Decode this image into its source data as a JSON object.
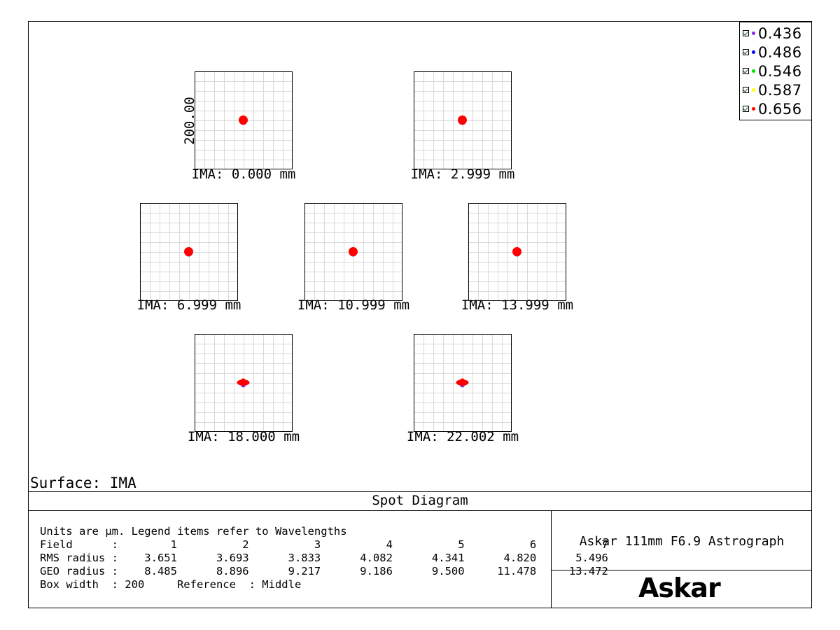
{
  "legend": {
    "items": [
      {
        "label": "0.436",
        "color": "#8a2be2"
      },
      {
        "label": "0.486",
        "color": "#0000ff"
      },
      {
        "label": "0.546",
        "color": "#00e000"
      },
      {
        "label": "0.587",
        "color": "#ffff00"
      },
      {
        "label": "0.656",
        "color": "#ff0000"
      }
    ]
  },
  "scale_label": "200.00",
  "fields": [
    {
      "label": "IMA: 0.000 mm",
      "shape": "round"
    },
    {
      "label": "IMA: 2.999 mm",
      "shape": "round"
    },
    {
      "label": "IMA: 6.999 mm",
      "shape": "round"
    },
    {
      "label": "IMA: 10.999 mm",
      "shape": "round"
    },
    {
      "label": "IMA: 13.999 mm",
      "shape": "round"
    },
    {
      "label": "IMA: 18.000 mm",
      "shape": "flat"
    },
    {
      "label": "IMA: 22.002 mm",
      "shape": "flat"
    }
  ],
  "surface": "Surface: IMA",
  "title": "Spot Diagram",
  "info": {
    "line1": "Units are µm. Legend items refer to Wavelengths",
    "field_label": "Field      :",
    "field_values": [
      "1",
      "2",
      "3",
      "4",
      "5",
      "6",
      "7"
    ],
    "rms_label": "RMS radius :",
    "rms_values": [
      "3.651",
      "3.693",
      "3.833",
      "4.082",
      "4.341",
      "4.820",
      "5.496"
    ],
    "geo_label": "GEO radius :",
    "geo_values": [
      "8.485",
      "8.896",
      "9.217",
      "9.186",
      "9.500",
      "11.478",
      "13.472"
    ],
    "box_width_label": "Box width  : 200",
    "reference_label": "Reference  : Middle"
  },
  "product": "Askar 111mm F6.9 Astrograph",
  "logo": "Askar"
}
